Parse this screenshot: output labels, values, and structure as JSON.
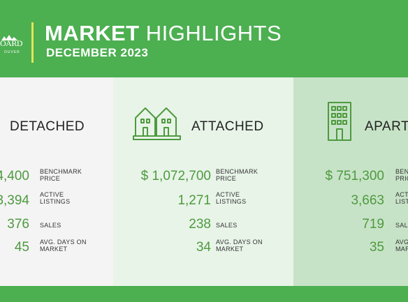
{
  "header": {
    "logo_word": "OARD",
    "logo_sub": "OUVER",
    "title_bold": "MARKET",
    "title_light": " HIGHLIGHTS",
    "subtitle": "DECEMBER 2023",
    "accent_color": "#e3e55a",
    "brand_color": "#4caf50"
  },
  "panels": [
    {
      "title": "DETACHED",
      "icon": "house-icon",
      "stats": [
        {
          "value": "4,400",
          "label_line1": "BENCHMARK",
          "label_line2": "PRICE"
        },
        {
          "value": "3,394",
          "label_line1": "ACTIVE",
          "label_line2": "LISTINGS"
        },
        {
          "value": "376",
          "label_line1": "SALES",
          "label_line2": ""
        },
        {
          "value": "45",
          "label_line1": "AVG. DAYS ON",
          "label_line2": "MARKET"
        }
      ]
    },
    {
      "title": "ATTACHED",
      "icon": "townhouse-icon",
      "stats": [
        {
          "value": "$ 1,072,700",
          "label_line1": "BENCHMARK",
          "label_line2": "PRICE"
        },
        {
          "value": "1,271",
          "label_line1": "ACTIVE",
          "label_line2": "LISTINGS"
        },
        {
          "value": "238",
          "label_line1": "SALES",
          "label_line2": ""
        },
        {
          "value": "34",
          "label_line1": "AVG. DAYS ON",
          "label_line2": "MARKET"
        }
      ]
    },
    {
      "title": "APARTM",
      "icon": "apartment-building-icon",
      "stats": [
        {
          "value": "$ 751,300",
          "label_line1": "BEN",
          "label_line2": "PRIC"
        },
        {
          "value": "3,663",
          "label_line1": "ACT",
          "label_line2": "LIST"
        },
        {
          "value": "719",
          "label_line1": "SAL",
          "label_line2": ""
        },
        {
          "value": "35",
          "label_line1": "AVG",
          "label_line2": "MAR"
        }
      ]
    }
  ]
}
